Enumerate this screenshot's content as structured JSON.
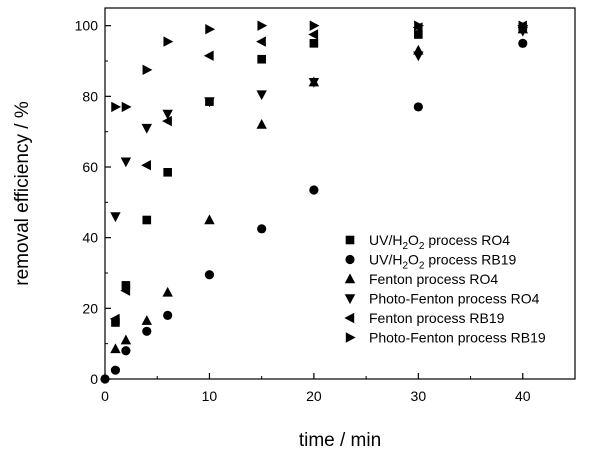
{
  "chart_data": {
    "type": "scatter",
    "xlabel": "time / min",
    "ylabel": "removal efficiency / %",
    "xlim": [
      0,
      45
    ],
    "ylim": [
      0,
      105
    ],
    "xticks": [
      0,
      10,
      20,
      30,
      40
    ],
    "yticks": [
      0,
      20,
      40,
      60,
      80,
      100
    ],
    "xtick_labels": [
      "0",
      "10",
      "20",
      "30",
      "40"
    ],
    "ytick_labels": [
      "0",
      "20",
      "40",
      "60",
      "80",
      "100"
    ],
    "grid": false,
    "legend_position": "bottom-right",
    "series": [
      {
        "name": "UV/H2O2 process RO4",
        "legend_prefix": "UV/H",
        "legend_sub": "2",
        "legend_mid": "O",
        "legend_sub2": "2",
        "legend_suffix": " process RO4",
        "marker": "square",
        "x": [
          1,
          2,
          4,
          6,
          10,
          15,
          20,
          30,
          40
        ],
        "y": [
          16,
          26.5,
          45,
          58.5,
          78.5,
          90.5,
          95,
          97.5,
          99.5
        ]
      },
      {
        "name": "UV/H2O2 process RB19",
        "legend_prefix": "UV/H",
        "legend_sub": "2",
        "legend_mid": "O",
        "legend_sub2": "2",
        "legend_suffix": " process RB19",
        "marker": "circle",
        "x": [
          0,
          1,
          2,
          4,
          6,
          10,
          15,
          20,
          30,
          40
        ],
        "y": [
          0,
          2.5,
          8,
          13.5,
          18,
          29.5,
          42.5,
          53.5,
          77,
          95
        ]
      },
      {
        "name": "Fenton process RO4",
        "legend_prefix": "Fenton process RO4",
        "marker": "triangle-up",
        "x": [
          1,
          2,
          4,
          6,
          10,
          15,
          20,
          30,
          40
        ],
        "y": [
          8.5,
          11,
          16.5,
          24.5,
          45,
          72,
          84,
          93,
          99
        ]
      },
      {
        "name": "Photo-Fenton process RO4",
        "legend_prefix": "Photo-Fenton process RO4",
        "marker": "triangle-down",
        "x": [
          1,
          2,
          4,
          6,
          10,
          15,
          20,
          30,
          40
        ],
        "y": [
          46,
          61.5,
          71,
          75,
          78.5,
          80.5,
          84,
          91.5,
          98.5
        ]
      },
      {
        "name": "Fenton process RB19",
        "legend_prefix": "Fenton process RB19",
        "marker": "triangle-left",
        "x": [
          1,
          2,
          4,
          6,
          10,
          15,
          20,
          30,
          40
        ],
        "y": [
          17,
          25,
          60.5,
          73,
          91.5,
          95.5,
          97.5,
          99.5,
          100
        ]
      },
      {
        "name": "Photo-Fenton process RB19",
        "legend_prefix": "Photo-Fenton process RB19",
        "marker": "triangle-right",
        "x": [
          1,
          2,
          4,
          6,
          10,
          15,
          20,
          30,
          40
        ],
        "y": [
          77,
          77,
          87.5,
          95.5,
          99,
          100,
          100,
          100,
          100
        ]
      }
    ]
  }
}
